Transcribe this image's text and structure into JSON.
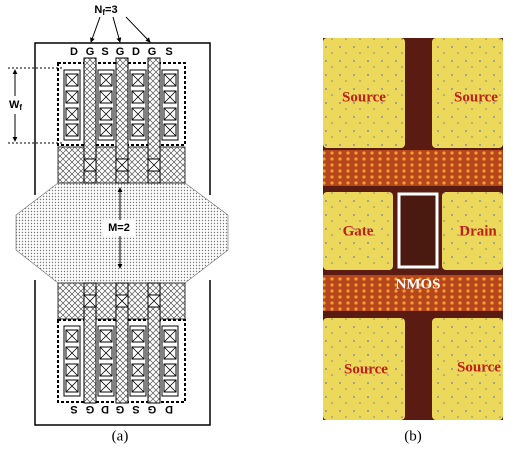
{
  "panel_a": {
    "nf_label": {
      "symbol": "N",
      "subscript": "f",
      "suffix": "=3"
    },
    "wf_label": {
      "symbol": "W",
      "subscript": "f"
    },
    "top_terminals": [
      "D",
      "G",
      "S",
      "G",
      "D",
      "G",
      "S"
    ],
    "bottom_terminals": [
      "S",
      "G",
      "D",
      "G",
      "S",
      "G",
      "D"
    ],
    "multiplier": "M=2",
    "caption": "(a)"
  },
  "panel_b": {
    "pads": [
      "Source",
      "Source",
      "Gate",
      "Drain",
      "Source",
      "Source"
    ],
    "device": "NMOS",
    "caption": "(b)"
  }
}
